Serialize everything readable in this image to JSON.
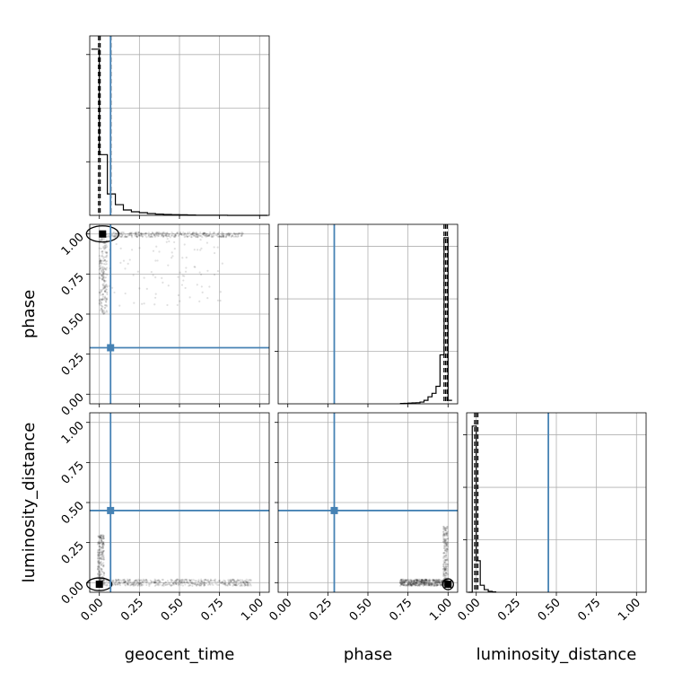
{
  "chart_data": {
    "type": "corner",
    "parameters": [
      "geocent_time",
      "phase",
      "luminosity_distance"
    ],
    "axis_ticks": [
      "0.00",
      "0.25",
      "0.50",
      "0.75",
      "1.00"
    ],
    "range": [
      -0.06,
      1.06
    ],
    "grid": true,
    "truths": [
      0.07,
      0.29,
      0.45
    ],
    "truth_color": "#4682b4",
    "quantiles": {
      "geocent_time": [
        -0.005,
        0.005,
        0.072
      ],
      "phase": [
        0.975,
        0.985,
        0.995
      ],
      "luminosity_distance": [
        -0.01,
        0.0,
        0.01
      ]
    },
    "histograms": {
      "geocent_time": {
        "bin_width": 0.05,
        "bins_start": -0.05,
        "counts": [
          0.93,
          0.34,
          0.12,
          0.06,
          0.03,
          0.02,
          0.015,
          0.01,
          0.007,
          0.005,
          0.004,
          0.003,
          0.002,
          0.001,
          0.001,
          0.001,
          0.001,
          0,
          0,
          0,
          0,
          0
        ]
      },
      "phase": {
        "bin_width": 0.025,
        "bins_start": 0.7,
        "counts": [
          0.002,
          0.003,
          0.004,
          0.005,
          0.006,
          0.01,
          0.02,
          0.04,
          0.06,
          0.1,
          0.28,
          0.95,
          0.02
        ]
      },
      "luminosity_distance": {
        "bin_width": 0.025,
        "bins_start": -0.05,
        "counts": [
          0.0,
          0.95,
          0.18,
          0.04,
          0.015,
          0.005,
          0.002
        ]
      }
    }
  }
}
